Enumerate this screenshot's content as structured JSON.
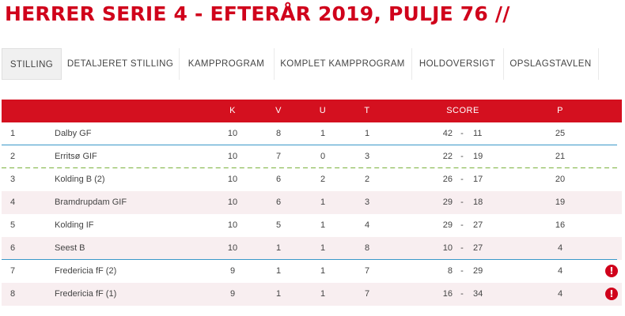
{
  "page_title": "HERRER SERIE 4 - EFTERÅR 2019, PULJE 76 //",
  "tabs": [
    {
      "label": "STILLING",
      "active": true
    },
    {
      "label": "DETALJERET STILLING",
      "active": false
    },
    {
      "label": "KAMPPROGRAM",
      "active": false
    },
    {
      "label": "KOMPLET KAMPPROGRAM",
      "active": false
    },
    {
      "label": "HOLDOVERSIGT",
      "active": false
    },
    {
      "label": "OPSLAGSTAVLEN",
      "active": false
    }
  ],
  "table": {
    "headers": {
      "k": "K",
      "v": "V",
      "u": "U",
      "t": "T",
      "score": "SCORE",
      "p": "P"
    },
    "rows": [
      {
        "pos": "1",
        "team": "Dalby GF",
        "k": "10",
        "v": "8",
        "u": "1",
        "t": "1",
        "score_for": "42",
        "score_sep": "-",
        "score_against": "11",
        "p": "25"
      },
      {
        "pos": "2",
        "team": "Erritsø GIF",
        "k": "10",
        "v": "7",
        "u": "0",
        "t": "3",
        "score_for": "22",
        "score_sep": "-",
        "score_against": "19",
        "p": "21"
      },
      {
        "pos": "3",
        "team": "Kolding B (2)",
        "k": "10",
        "v": "6",
        "u": "2",
        "t": "2",
        "score_for": "26",
        "score_sep": "-",
        "score_against": "17",
        "p": "20"
      },
      {
        "pos": "4",
        "team": "Bramdrupdam GIF",
        "k": "10",
        "v": "6",
        "u": "1",
        "t": "3",
        "score_for": "29",
        "score_sep": "-",
        "score_against": "18",
        "p": "19"
      },
      {
        "pos": "5",
        "team": "Kolding IF",
        "k": "10",
        "v": "5",
        "u": "1",
        "t": "4",
        "score_for": "29",
        "score_sep": "-",
        "score_against": "27",
        "p": "16"
      },
      {
        "pos": "6",
        "team": "Seest B",
        "k": "10",
        "v": "1",
        "u": "1",
        "t": "8",
        "score_for": "10",
        "score_sep": "-",
        "score_against": "27",
        "p": "4"
      },
      {
        "pos": "7",
        "team": "Fredericia fF (2)",
        "k": "9",
        "v": "1",
        "u": "1",
        "t": "7",
        "score_for": "8",
        "score_sep": "-",
        "score_against": "29",
        "p": "4",
        "warning": "!"
      },
      {
        "pos": "8",
        "team": "Fredericia fF (1)",
        "k": "9",
        "v": "1",
        "u": "1",
        "t": "7",
        "score_for": "16",
        "score_sep": "-",
        "score_against": "34",
        "p": "4",
        "warning": "!"
      }
    ]
  },
  "colors": {
    "accent": "#d4101f",
    "title": "#d0021b",
    "promotion_line": "#3a98c8",
    "qualification_line": "#7bb23c",
    "alt_row": "#f8eef0"
  },
  "icons": {
    "warning": "exclamation-circle-icon"
  }
}
